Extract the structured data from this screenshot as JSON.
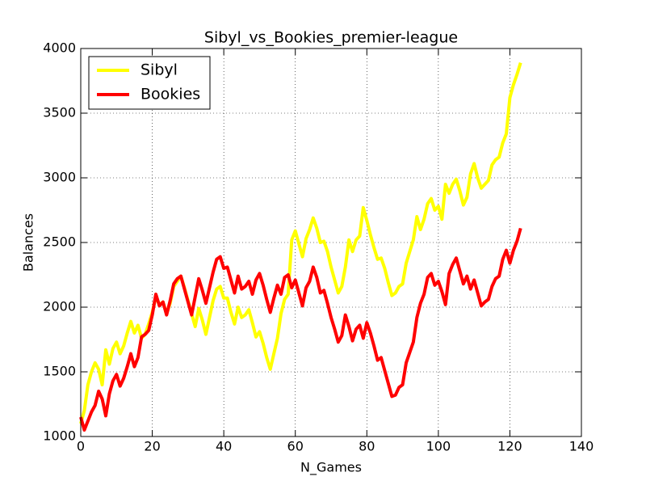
{
  "chart_data": {
    "type": "line",
    "title": "Sibyl_vs_Bookies_premier-league",
    "x_label": "N_Games",
    "y_label": "Balances",
    "x": [
      0,
      1,
      2,
      3,
      4,
      5,
      6,
      7,
      8,
      9,
      10,
      11,
      12,
      13,
      14,
      15,
      16,
      17,
      18,
      19,
      20,
      21,
      22,
      23,
      24,
      25,
      26,
      27,
      28,
      29,
      30,
      31,
      32,
      33,
      34,
      35,
      36,
      37,
      38,
      39,
      40,
      41,
      42,
      43,
      44,
      45,
      46,
      47,
      48,
      49,
      50,
      51,
      52,
      53,
      54,
      55,
      56,
      57,
      58,
      59,
      60,
      61,
      62,
      63,
      64,
      65,
      66,
      67,
      68,
      69,
      70,
      71,
      72,
      73,
      74,
      75,
      76,
      77,
      78,
      79,
      80,
      81,
      82,
      83,
      84,
      85,
      86,
      87,
      88,
      89,
      90,
      91,
      92,
      93,
      94,
      95,
      96,
      97,
      98,
      99,
      100,
      101,
      102,
      103,
      104,
      105,
      106,
      107,
      108,
      109,
      110,
      111,
      112,
      113,
      114,
      115,
      116,
      117,
      118,
      119,
      120,
      121,
      122,
      123
    ],
    "series": [
      {
        "name": "Sibyl",
        "color": "#ffff00",
        "values": [
          1100,
          1200,
          1400,
          1500,
          1570,
          1520,
          1400,
          1670,
          1560,
          1680,
          1730,
          1640,
          1700,
          1800,
          1890,
          1800,
          1860,
          1760,
          1790,
          1870,
          1960,
          2080,
          2020,
          2040,
          1950,
          2030,
          2160,
          2200,
          2240,
          2150,
          2050,
          1950,
          1850,
          1990,
          1900,
          1790,
          1920,
          2050,
          2140,
          2160,
          2070,
          2070,
          1960,
          1870,
          2000,
          1920,
          1940,
          1980,
          1880,
          1770,
          1810,
          1720,
          1610,
          1520,
          1640,
          1760,
          1950,
          2060,
          2100,
          2520,
          2590,
          2490,
          2390,
          2530,
          2600,
          2690,
          2610,
          2500,
          2510,
          2430,
          2310,
          2210,
          2110,
          2160,
          2310,
          2520,
          2430,
          2520,
          2550,
          2770,
          2670,
          2560,
          2460,
          2370,
          2380,
          2300,
          2190,
          2090,
          2110,
          2160,
          2180,
          2340,
          2430,
          2520,
          2700,
          2600,
          2680,
          2800,
          2840,
          2750,
          2780,
          2680,
          2950,
          2880,
          2950,
          2990,
          2900,
          2790,
          2850,
          3030,
          3110,
          3000,
          2920,
          2950,
          2980,
          3100,
          3140,
          3160,
          3270,
          3340,
          3620,
          3720,
          3800,
          3890
        ]
      },
      {
        "name": "Bookies",
        "color": "#ff0000",
        "values": [
          1150,
          1050,
          1120,
          1190,
          1240,
          1350,
          1290,
          1160,
          1330,
          1430,
          1480,
          1390,
          1450,
          1540,
          1640,
          1540,
          1610,
          1770,
          1790,
          1820,
          1940,
          2100,
          2010,
          2040,
          1940,
          2050,
          2180,
          2220,
          2240,
          2140,
          2040,
          1940,
          2080,
          2220,
          2130,
          2030,
          2150,
          2270,
          2370,
          2390,
          2300,
          2310,
          2210,
          2110,
          2240,
          2140,
          2160,
          2200,
          2100,
          2210,
          2260,
          2170,
          2060,
          1960,
          2070,
          2170,
          2100,
          2230,
          2250,
          2150,
          2210,
          2110,
          2010,
          2150,
          2200,
          2310,
          2230,
          2110,
          2130,
          2030,
          1920,
          1830,
          1730,
          1780,
          1940,
          1850,
          1740,
          1830,
          1860,
          1760,
          1880,
          1800,
          1700,
          1590,
          1610,
          1510,
          1410,
          1310,
          1320,
          1380,
          1400,
          1570,
          1650,
          1730,
          1920,
          2030,
          2100,
          2230,
          2260,
          2170,
          2200,
          2120,
          2020,
          2260,
          2330,
          2380,
          2280,
          2180,
          2240,
          2140,
          2210,
          2110,
          2010,
          2040,
          2060,
          2160,
          2220,
          2240,
          2370,
          2440,
          2340,
          2440,
          2510,
          2610
        ]
      }
    ],
    "xlim": [
      0,
      140
    ],
    "xticks": [
      0,
      20,
      40,
      60,
      80,
      100,
      120,
      140
    ],
    "ylim": [
      1000,
      4000
    ],
    "yticks": [
      1000,
      1500,
      2000,
      2500,
      3000,
      3500,
      4000
    ],
    "grid": true,
    "legend": "upper-left"
  }
}
